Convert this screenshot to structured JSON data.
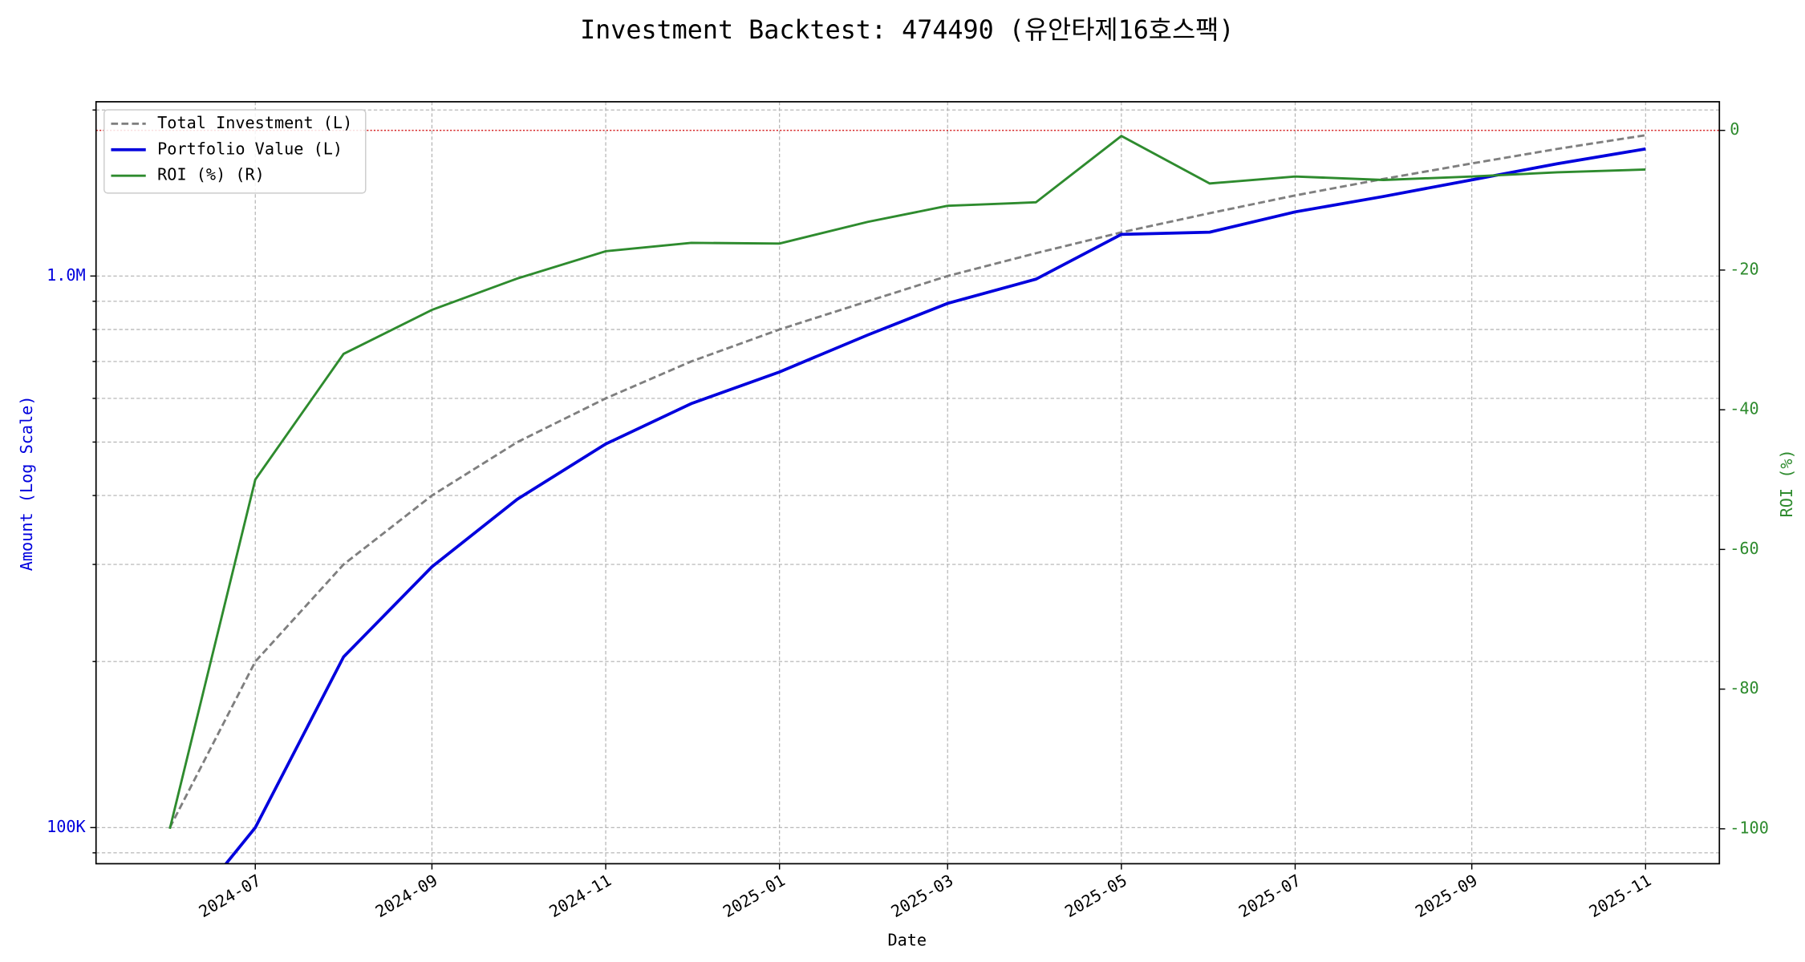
{
  "chart_data": {
    "type": "line",
    "title": "Investment Backtest: 474490 (유안타제16호스팩)",
    "x_label": "Date",
    "y_label": "Amount (Log Scale)",
    "y2_label": "ROI (%)",
    "x": [
      "2024-06",
      "2024-07",
      "2024-08",
      "2024-09",
      "2024-10",
      "2024-11",
      "2024-12",
      "2025-01",
      "2025-02",
      "2025-03",
      "2025-04",
      "2025-05",
      "2025-06",
      "2025-07",
      "2025-08",
      "2025-09",
      "2025-10",
      "2025-11"
    ],
    "xticks": [
      "2024-07",
      "2024-09",
      "2024-11",
      "2025-01",
      "2025-03",
      "2025-05",
      "2025-07",
      "2025-09",
      "2025-11"
    ],
    "y_scale": "log",
    "ylim": [
      86000,
      2070000
    ],
    "yticks": [
      {
        "value": 100000,
        "label": "100K"
      },
      {
        "value": 1000000,
        "label": "1.0M"
      }
    ],
    "y_minor_ticks": [
      90000,
      200000,
      300000,
      400000,
      500000,
      600000,
      700000,
      800000,
      900000,
      2000000
    ],
    "y2lim": [
      -105,
      4.1
    ],
    "y2ticks": [
      0,
      -20,
      -40,
      -60,
      -80,
      -100
    ],
    "grid": true,
    "legend": "upper left",
    "reference_line": {
      "axis": "y2",
      "value": 0,
      "color": "#d62728"
    },
    "series": [
      {
        "name": "Total Investment (L)",
        "color": "#7f7f7f",
        "linestyle": "dashed",
        "width": 2,
        "values": [
          100000,
          200000,
          300000,
          400000,
          500000,
          600000,
          700000,
          800000,
          900000,
          1000000,
          1100000,
          1200000,
          1300000,
          1400000,
          1500000,
          1600000,
          1700000,
          1800000
        ]
      },
      {
        "name": "Portfolio Value (L)",
        "color": "#0000dd",
        "linestyle": "solid",
        "width": 2.6,
        "values": [
          0,
          100000,
          204000,
          297000,
          394000,
          496000,
          587000,
          670000,
          782000,
          892000,
          987000,
          1190000,
          1201000,
          1307000,
          1394000,
          1494000,
          1598000,
          1700000
        ]
      },
      {
        "name": "ROI (%) (R)",
        "color": "#2e8b2e",
        "linestyle": "solid",
        "width": 2,
        "axis": "y2",
        "values": [
          -100,
          -50,
          -32,
          -25.7,
          -21.2,
          -17.3,
          -16.1,
          -16.2,
          -13.1,
          -10.8,
          -10.3,
          -0.8,
          -7.6,
          -6.6,
          -7.1,
          -6.6,
          -6.0,
          -5.6
        ]
      }
    ]
  }
}
